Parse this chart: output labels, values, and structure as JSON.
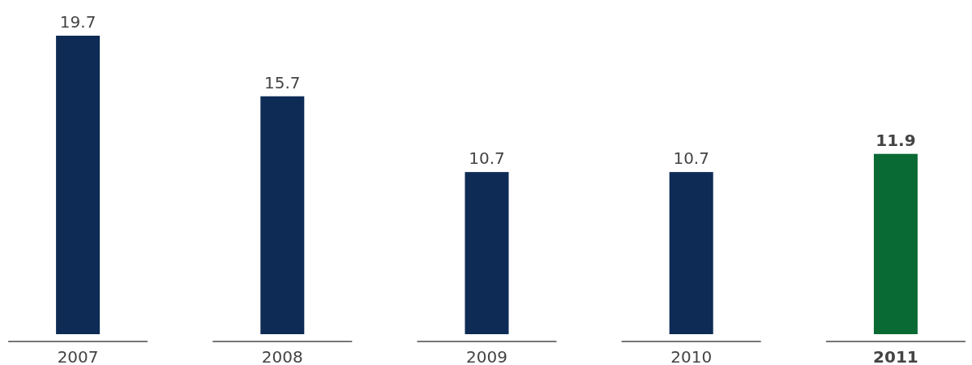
{
  "chart_data": {
    "type": "bar",
    "categories": [
      "2007",
      "2008",
      "2009",
      "2010",
      "2011"
    ],
    "values": [
      19.7,
      15.7,
      10.7,
      10.7,
      11.9
    ],
    "colors": [
      "#0d2b55",
      "#0d2b55",
      "#0d2b55",
      "#0d2b55",
      "#0a6a34"
    ],
    "data_labels": true
  }
}
